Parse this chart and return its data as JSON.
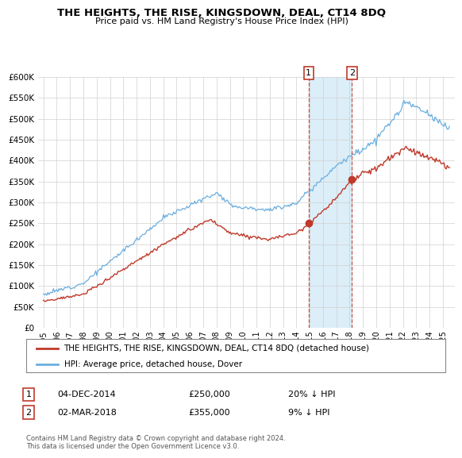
{
  "title": "THE HEIGHTS, THE RISE, KINGSDOWN, DEAL, CT14 8DQ",
  "subtitle": "Price paid vs. HM Land Registry's House Price Index (HPI)",
  "legend_line1": "THE HEIGHTS, THE RISE, KINGSDOWN, DEAL, CT14 8DQ (detached house)",
  "legend_line2": "HPI: Average price, detached house, Dover",
  "annotation1_date": "04-DEC-2014",
  "annotation1_price": "£250,000",
  "annotation1_hpi": "20% ↓ HPI",
  "annotation2_date": "02-MAR-2018",
  "annotation2_price": "£355,000",
  "annotation2_hpi": "9% ↓ HPI",
  "footer": "Contains HM Land Registry data © Crown copyright and database right 2024.\nThis data is licensed under the Open Government Licence v3.0.",
  "hpi_color": "#6aaee0",
  "price_color": "#c0392b",
  "highlight_color": "#dceef8",
  "ylim": [
    0,
    600000
  ],
  "yticks": [
    0,
    50000,
    100000,
    150000,
    200000,
    250000,
    300000,
    350000,
    400000,
    450000,
    500000,
    550000,
    600000
  ],
  "t1": 2014.92,
  "t2": 2018.17,
  "p1": 250000,
  "p2": 355000
}
